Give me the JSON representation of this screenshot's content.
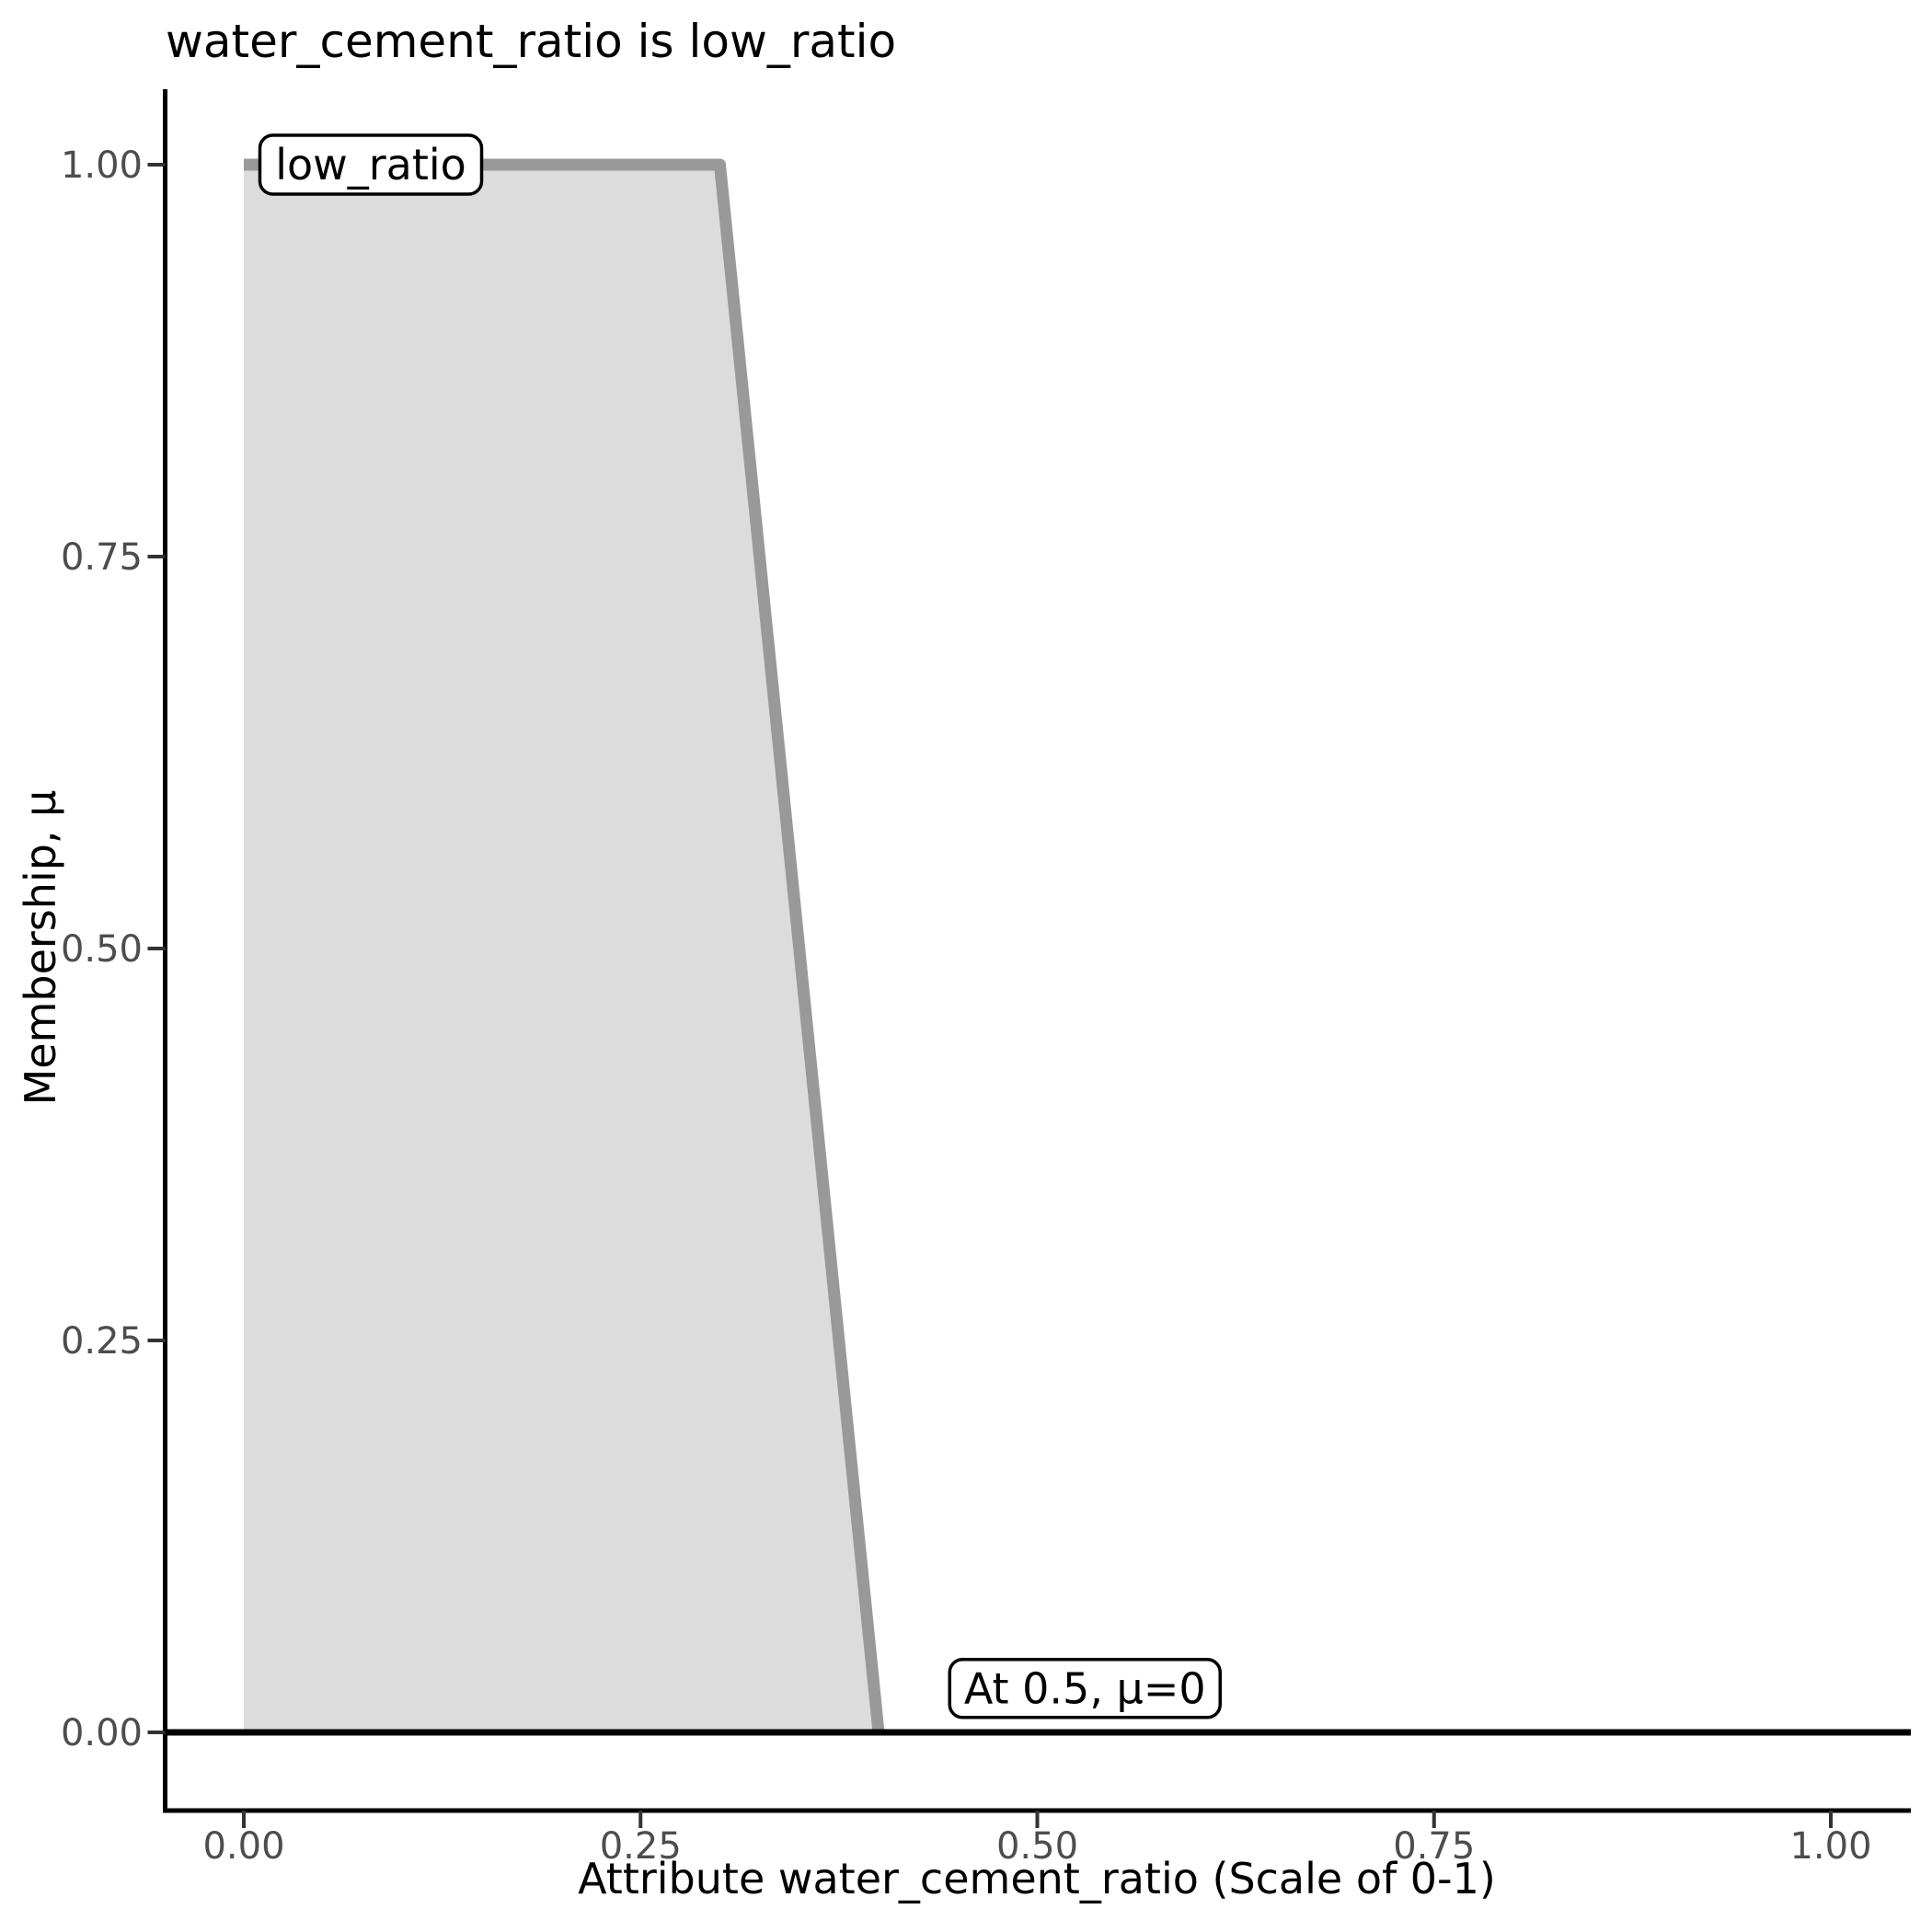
{
  "chart_data": {
    "type": "area",
    "subtype": "fuzzy-membership-function",
    "title": "water_cement_ratio is low_ratio",
    "xlabel": "Attribute water_cement_ratio (Scale of 0-1)",
    "ylabel": "Membership, μ",
    "xlim": [
      0,
      1
    ],
    "ylim": [
      0,
      1
    ],
    "grid": false,
    "legend": "none",
    "x_ticks": [
      0,
      0.25,
      0.5,
      0.75,
      1
    ],
    "x_tick_labels": [
      "0.00",
      "0.25",
      "0.50",
      "0.75",
      "1.00"
    ],
    "y_ticks": [
      0,
      0.25,
      0.5,
      0.75,
      1
    ],
    "y_tick_labels": [
      "0.00",
      "0.25",
      "0.50",
      "0.75",
      "1.00"
    ],
    "series": [
      {
        "name": "low_ratio membership",
        "shape": "trapezoid",
        "x": [
          0,
          0.3,
          0.4
        ],
        "y": [
          1,
          1,
          0
        ],
        "description": "membership = 1 from x=0 to x=0.3, linear descent to 0 at x=0.4"
      },
      {
        "name": "zero membership baseline",
        "x": [
          0,
          1
        ],
        "y": [
          0,
          0
        ]
      }
    ],
    "annotations": [
      {
        "text": "low_ratio",
        "x": 0.08,
        "y": 1.0
      },
      {
        "text": "At 0.5, μ=0",
        "x": 0.53,
        "y": 0.028
      }
    ],
    "colors": {
      "background": "#ffffff",
      "area_fill": "#dcdcdc",
      "area_stroke": "#999999",
      "baseline": "#000000",
      "axis": "#000000",
      "tick_mark": "#333333",
      "tick_label": "#4d4d4d",
      "text": "#000000",
      "annotation_fill": "#ffffff",
      "annotation_border": "#000000"
    }
  }
}
